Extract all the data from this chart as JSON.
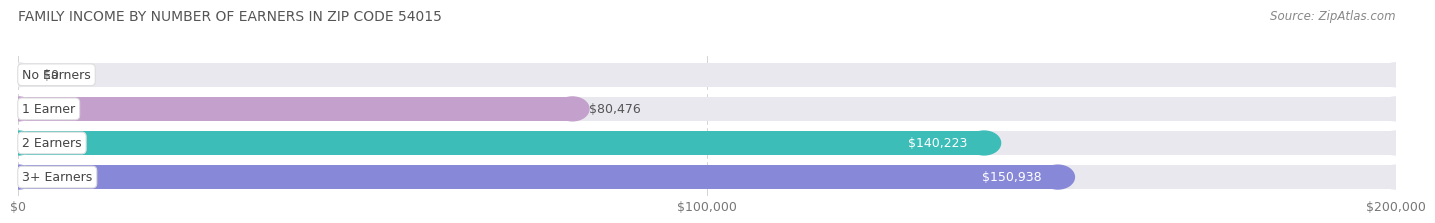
{
  "title": "FAMILY INCOME BY NUMBER OF EARNERS IN ZIP CODE 54015",
  "source": "Source: ZipAtlas.com",
  "categories": [
    "No Earners",
    "1 Earner",
    "2 Earners",
    "3+ Earners"
  ],
  "values": [
    0,
    80476,
    140223,
    150938
  ],
  "bar_colors": [
    "#a8c8e8",
    "#c4a0cc",
    "#3dbdb8",
    "#8888d8"
  ],
  "bar_label_colors": [
    "#555555",
    "#555555",
    "#ffffff",
    "#ffffff"
  ],
  "bar_labels": [
    "$0",
    "$80,476",
    "$140,223",
    "$150,938"
  ],
  "xlim": [
    0,
    200000
  ],
  "xtick_values": [
    0,
    100000,
    200000
  ],
  "xtick_labels": [
    "$0",
    "$100,000",
    "$200,000"
  ],
  "bg_color": "#f5f5f5",
  "bar_bg_color": "#e8e8ee",
  "title_fontsize": 10,
  "source_fontsize": 8.5,
  "label_fontsize": 9,
  "value_fontsize": 9,
  "tick_fontsize": 9,
  "bar_height": 0.7,
  "fig_width": 14.06,
  "fig_height": 2.33
}
